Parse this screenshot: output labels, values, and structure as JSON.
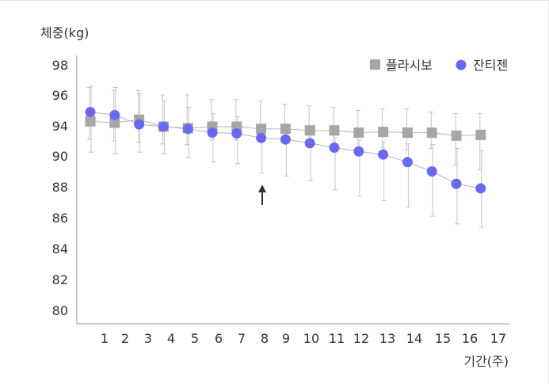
{
  "chart_data": {
    "type": "line",
    "ylabel": "체중(kg)",
    "xlabel": "기간(주)",
    "yticks": [
      80,
      82,
      84,
      86,
      88,
      90,
      94,
      96,
      98
    ],
    "xticks": [
      1,
      2,
      3,
      4,
      5,
      6,
      7,
      8,
      9,
      10,
      11,
      12,
      13,
      14,
      15,
      16,
      17
    ],
    "legend_position": "top-right",
    "grid": false,
    "annotation": {
      "type": "arrow-up",
      "x": 8
    },
    "series": [
      {
        "name": "플라시보",
        "marker": "square",
        "color": "#a6a6a6",
        "x": [
          0,
          1,
          2,
          3,
          4,
          5,
          6,
          7,
          8,
          9,
          10,
          11,
          12,
          13,
          14,
          15,
          16
        ],
        "y": [
          94.3,
          94.2,
          94.4,
          93.9,
          93.7,
          93.9,
          93.9,
          93.6,
          93.6,
          93.4,
          93.4,
          93.1,
          93.2,
          93.1,
          93.1,
          92.7,
          92.8
        ],
        "err_low": [
          92.2,
          92.0,
          91.8,
          91.6,
          91.5,
          92.1,
          92.1,
          92.0,
          91.8,
          91.5,
          91.4,
          91.1,
          91.1,
          90.8,
          91.0,
          89.4,
          89.1
        ],
        "err_high": [
          96.5,
          96.3,
          96.3,
          96.0,
          96.0,
          95.7,
          95.7,
          95.6,
          95.4,
          95.3,
          95.2,
          95.0,
          95.1,
          95.1,
          94.9,
          94.8,
          94.8
        ]
      },
      {
        "name": "잔티젠",
        "marker": "circle",
        "color": "#6b68f0",
        "x": [
          0,
          1,
          2,
          3,
          4,
          5,
          6,
          7,
          8,
          9,
          10,
          11,
          12,
          13,
          14,
          15,
          16
        ],
        "y": [
          94.9,
          94.7,
          94.1,
          93.9,
          93.6,
          93.1,
          93.0,
          92.4,
          92.2,
          91.7,
          91.1,
          90.6,
          90.2,
          89.6,
          89.0,
          88.2,
          87.9
        ],
        "err_low": [
          90.5,
          90.3,
          90.5,
          90.3,
          89.9,
          89.6,
          89.5,
          88.9,
          88.7,
          88.4,
          87.8,
          87.4,
          87.1,
          86.7,
          86.1,
          85.6,
          85.4
        ],
        "err_high": [
          96.6,
          96.5,
          96.1,
          95.6,
          95.2,
          94.8,
          94.6,
          94.0,
          93.7,
          93.0,
          92.4,
          92.1,
          91.9,
          91.6,
          91.5,
          91.0,
          90.7
        ]
      }
    ]
  }
}
